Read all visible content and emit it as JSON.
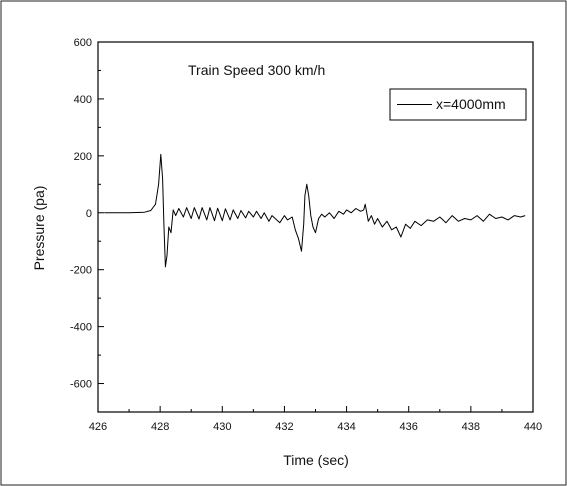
{
  "chart_data": {
    "type": "line",
    "title": "Train Speed 300 km/h",
    "xlabel": "Time (sec)",
    "ylabel": "Pressure (pa)",
    "xlim": [
      426,
      440
    ],
    "ylim": [
      -700,
      600
    ],
    "xticks": [
      426,
      428,
      430,
      432,
      434,
      436,
      438,
      440
    ],
    "yticks": [
      -600,
      -400,
      -200,
      0,
      200,
      400,
      600
    ],
    "grid": false,
    "legend_position": "top-right",
    "series": [
      {
        "name": "x=4000mm",
        "color": "#000000",
        "x": [
          426.2,
          427.0,
          427.5,
          427.7,
          427.85,
          427.95,
          428.02,
          428.08,
          428.12,
          428.17,
          428.22,
          428.28,
          428.35,
          428.42,
          428.5,
          428.6,
          428.75,
          428.85,
          429.0,
          429.1,
          429.25,
          429.35,
          429.5,
          429.6,
          429.75,
          429.85,
          430.0,
          430.1,
          430.25,
          430.35,
          430.5,
          430.6,
          430.75,
          430.85,
          431.0,
          431.1,
          431.25,
          431.35,
          431.5,
          431.6,
          431.75,
          431.85,
          432.0,
          432.1,
          432.25,
          432.35,
          432.45,
          432.55,
          432.62,
          432.66,
          432.72,
          432.78,
          432.85,
          432.92,
          433.0,
          433.1,
          433.2,
          433.3,
          433.45,
          433.6,
          433.75,
          433.9,
          434.0,
          434.15,
          434.3,
          434.45,
          434.55,
          434.6,
          434.65,
          434.7,
          434.8,
          434.9,
          435.0,
          435.15,
          435.3,
          435.45,
          435.6,
          435.75,
          435.9,
          436.05,
          436.2,
          436.4,
          436.6,
          436.8,
          437.0,
          437.2,
          437.4,
          437.6,
          437.8,
          438.0,
          438.2,
          438.4,
          438.6,
          438.8,
          439.0,
          439.2,
          439.4,
          439.6,
          439.75
        ],
        "y": [
          0,
          0,
          2,
          8,
          30,
          100,
          205,
          120,
          -40,
          -190,
          -150,
          -50,
          -70,
          10,
          -10,
          15,
          -15,
          18,
          -20,
          18,
          -22,
          18,
          -25,
          18,
          -28,
          16,
          -28,
          14,
          -25,
          10,
          -20,
          8,
          -18,
          5,
          -15,
          5,
          -20,
          0,
          -30,
          -10,
          -25,
          -35,
          -10,
          -25,
          -15,
          -60,
          -90,
          -135,
          -40,
          60,
          100,
          60,
          -10,
          -50,
          -70,
          -20,
          -5,
          -15,
          0,
          -20,
          5,
          -5,
          10,
          0,
          15,
          5,
          10,
          30,
          0,
          -30,
          -10,
          -40,
          -20,
          -50,
          -30,
          -60,
          -50,
          -85,
          -40,
          -55,
          -30,
          -45,
          -25,
          -30,
          -15,
          -35,
          -10,
          -30,
          -20,
          -25,
          -10,
          -30,
          -5,
          -20,
          -15,
          -25,
          -10,
          -15,
          -10
        ]
      }
    ]
  }
}
